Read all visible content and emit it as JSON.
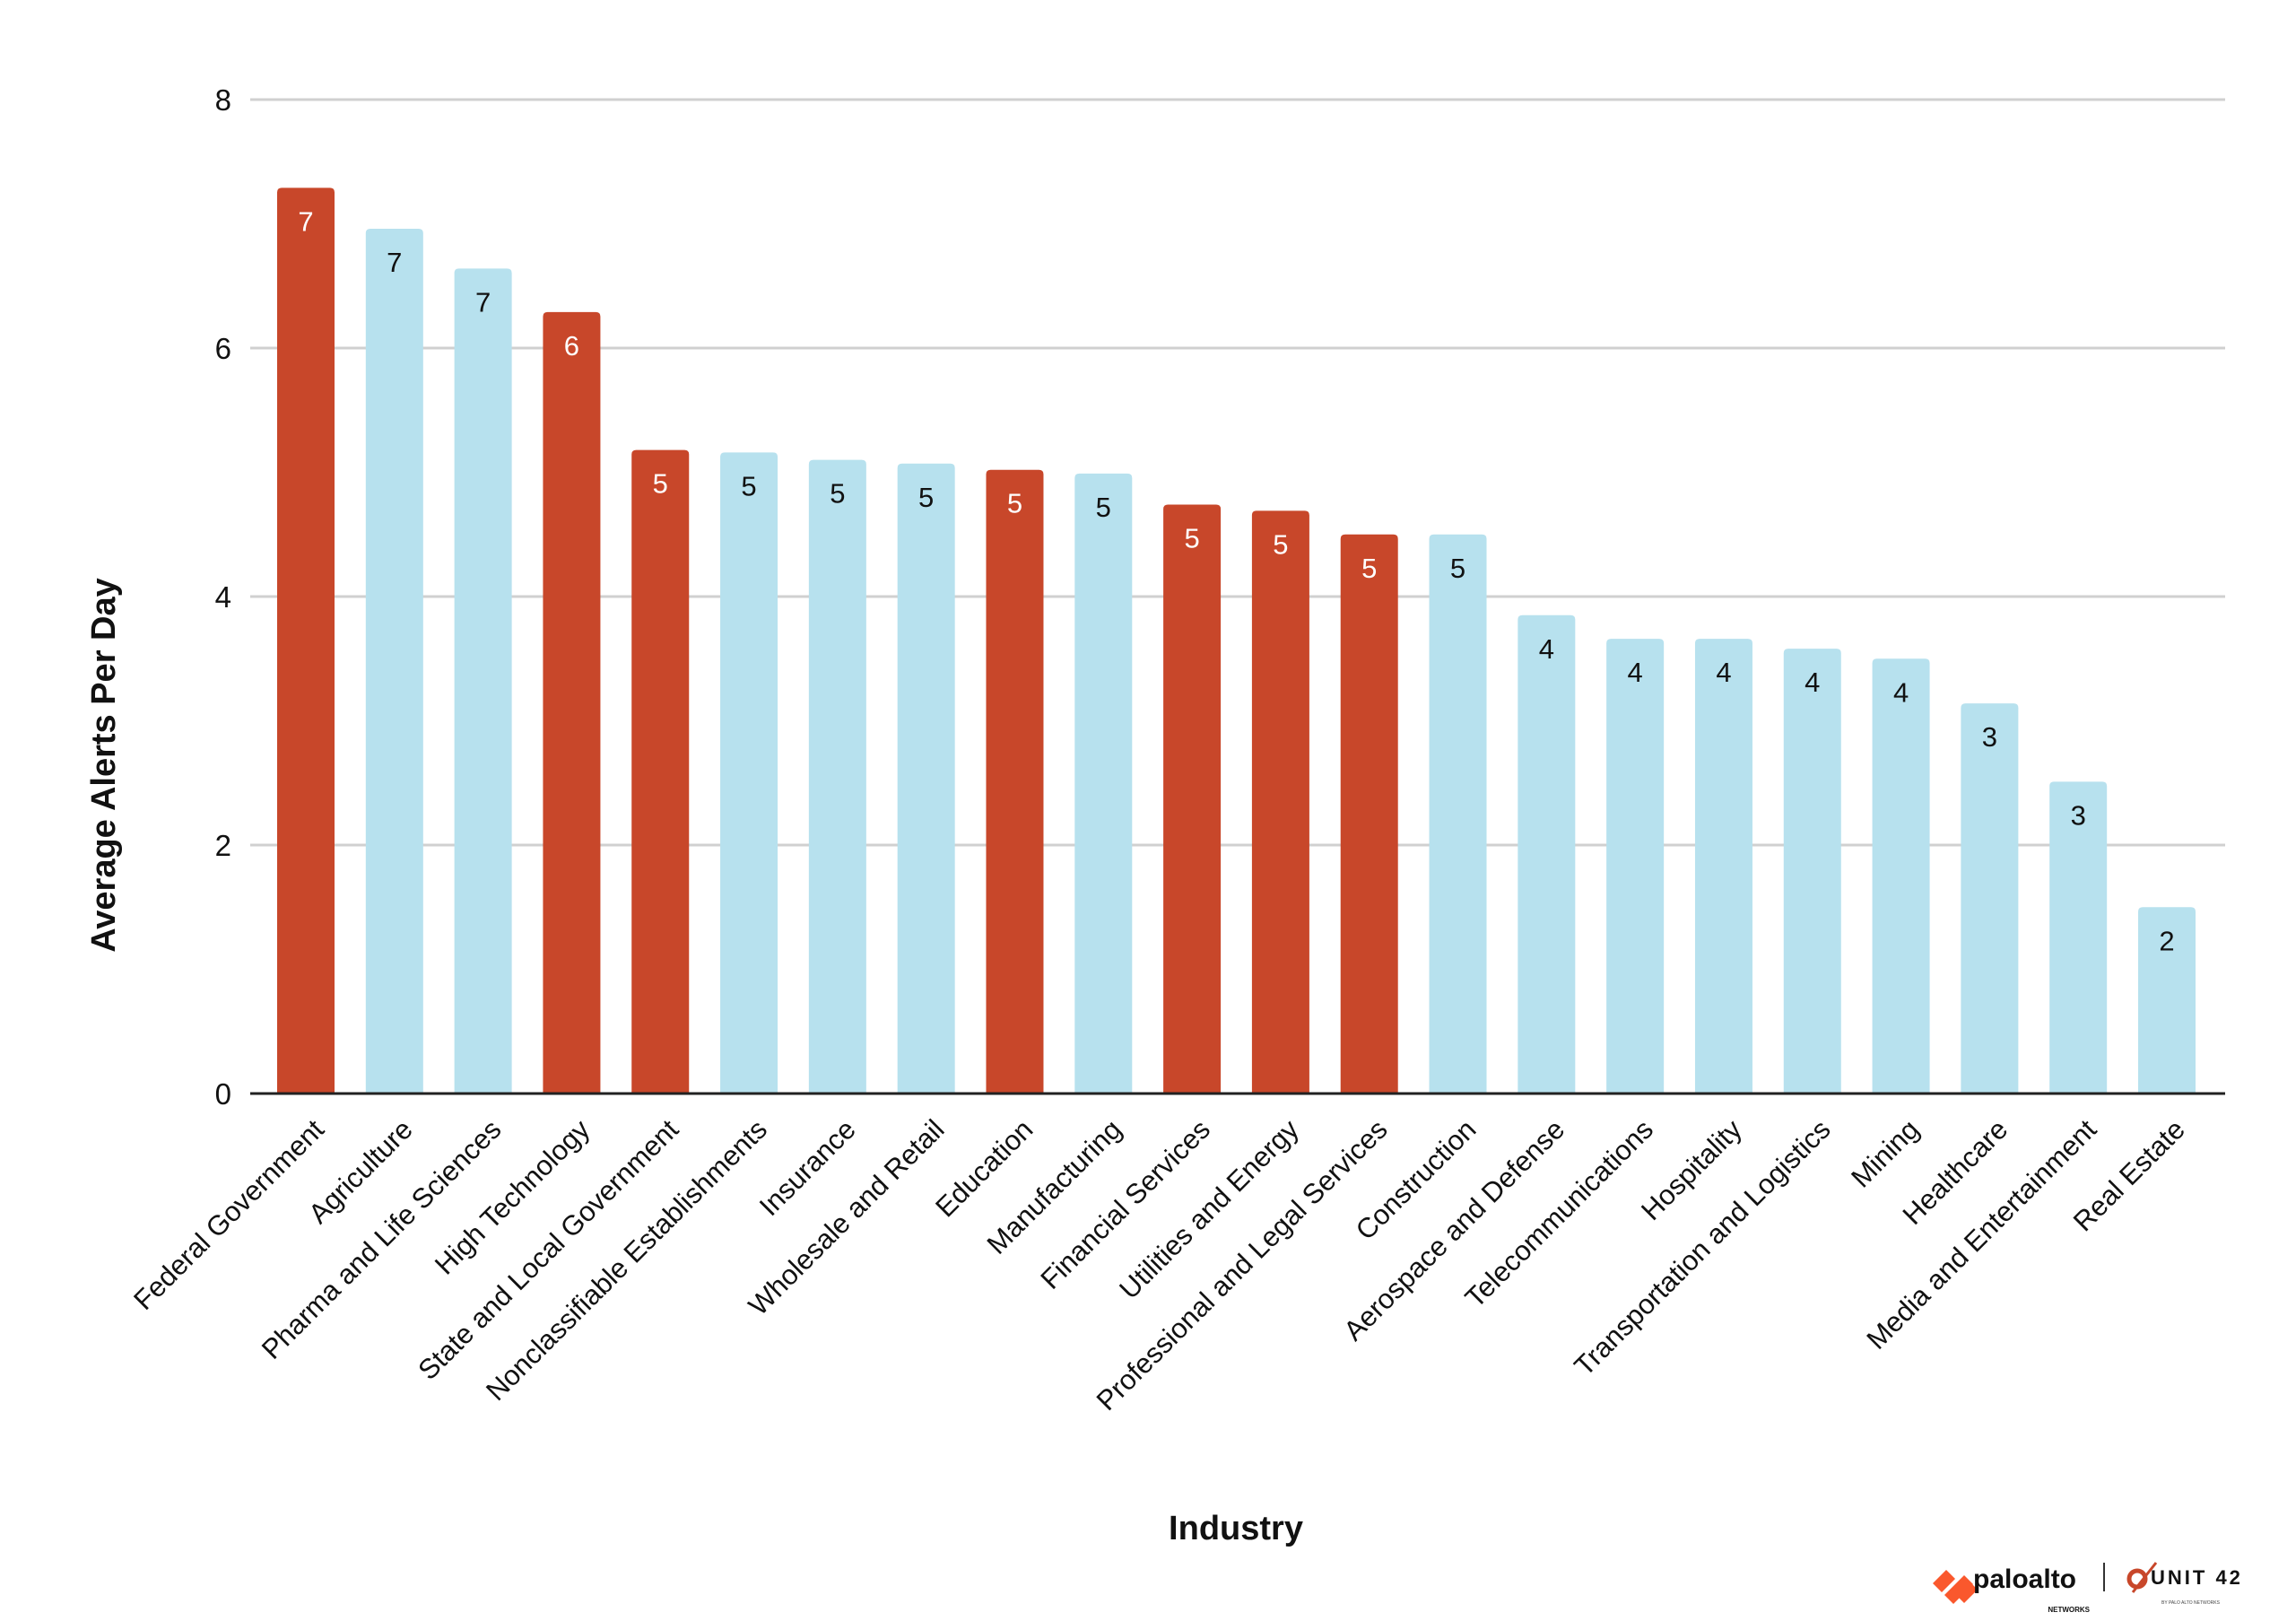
{
  "chart_data": {
    "type": "bar",
    "xlabel": "Industry",
    "ylabel": "Average Alerts Per Day",
    "ylim": [
      0,
      8
    ],
    "yticks": [
      0,
      2,
      4,
      6,
      8
    ],
    "grid": true,
    "categories": [
      "Federal Government",
      "Agriculture",
      "Pharma and Life Sciences",
      "High Technology",
      "State and Local Government",
      "Nonclassifiable Establishments",
      "Insurance",
      "Wholesale and Retail",
      "Education",
      "Manufacturing",
      "Financial Services",
      "Utilities and Energy",
      "Professional and Legal Services",
      "Construction",
      "Aerospace and Defense",
      "Telecommunications",
      "Hospitality",
      "Transportation and Logistics",
      "Mining",
      "Healthcare",
      "Media and Entertainment",
      "Real Estate"
    ],
    "values": [
      7.29,
      6.96,
      6.64,
      6.29,
      5.18,
      5.16,
      5.1,
      5.07,
      5.02,
      4.99,
      4.74,
      4.69,
      4.5,
      4.5,
      3.85,
      3.66,
      3.66,
      3.58,
      3.5,
      3.14,
      2.51,
      1.5
    ],
    "data_labels": [
      "7",
      "7",
      "7",
      "6",
      "5",
      "5",
      "5",
      "5",
      "5",
      "5",
      "5",
      "5",
      "5",
      "5",
      "4",
      "4",
      "4",
      "4",
      "4",
      "3",
      "3",
      "2"
    ],
    "highlighted": [
      true,
      false,
      false,
      true,
      true,
      false,
      false,
      false,
      true,
      false,
      true,
      true,
      true,
      false,
      false,
      false,
      false,
      false,
      false,
      false,
      false,
      false
    ],
    "colors": {
      "highlight": "#C8472A",
      "default": "#B7E1EE",
      "grid": "#D0D0D0",
      "axis": "#222222"
    }
  },
  "logos": {
    "paloalto": "paloalto",
    "paloalto_sub": "NETWORKS",
    "unit42": "UNIT 42",
    "unit42_sub": "BY PALO ALTO NETWORKS",
    "accent": "#FA582D"
  }
}
